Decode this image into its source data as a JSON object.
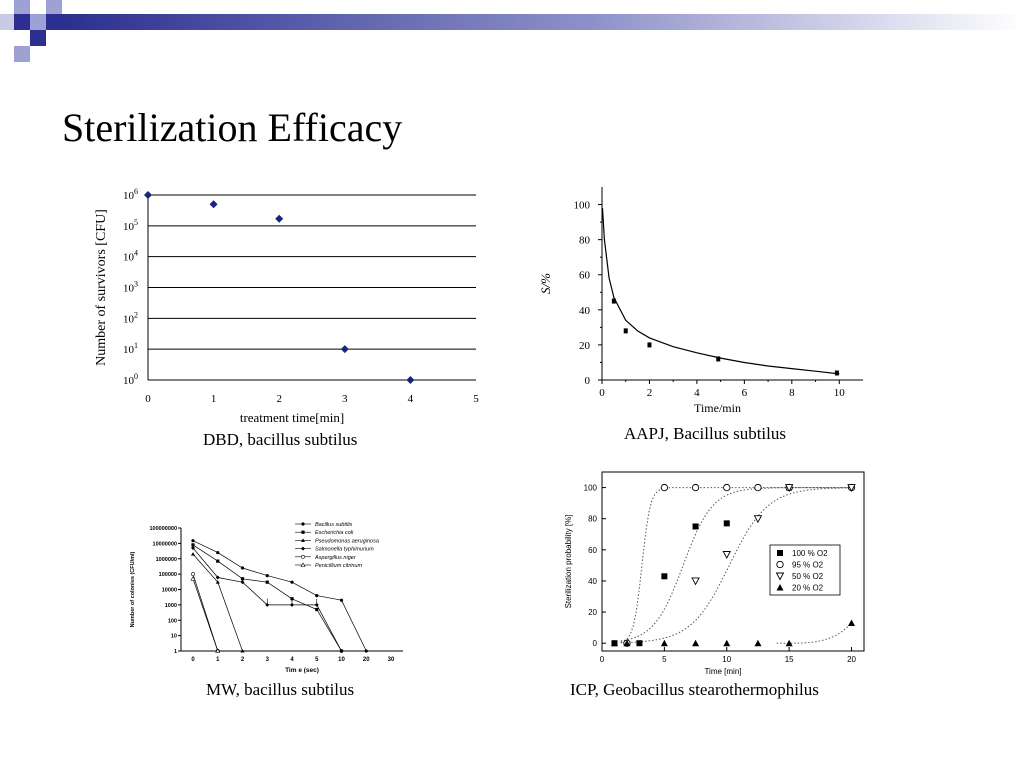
{
  "slide": {
    "title": "Sterilization Efficacy",
    "accent_color": "#2c2f8f",
    "accent_light": "#9da1d3"
  },
  "chart_data": [
    {
      "id": "dbd",
      "type": "scatter",
      "caption": "DBD, bacillus subtilus",
      "xlabel": "treatment time[min]",
      "ylabel": "Number of survivors [CFU]",
      "xlim": [
        0,
        5
      ],
      "xticks": [
        "0",
        "1",
        "2",
        "3",
        "4",
        "5"
      ],
      "yscale": "log",
      "ylim": [
        1,
        1000000
      ],
      "yticks": [
        {
          "value": 1,
          "label": "10",
          "sup": "0"
        },
        {
          "value": 10,
          "label": "10",
          "sup": "1"
        },
        {
          "value": 100,
          "label": "10",
          "sup": "2"
        },
        {
          "value": 1000,
          "label": "10",
          "sup": "3"
        },
        {
          "value": 10000,
          "label": "10",
          "sup": "4"
        },
        {
          "value": 100000,
          "label": "10",
          "sup": "5"
        },
        {
          "value": 1000000,
          "label": "10",
          "sup": "6"
        }
      ],
      "grid": true,
      "marker_color": "#1a237e",
      "series": [
        {
          "points": [
            [
              0,
              1000000
            ],
            [
              1,
              500000
            ],
            [
              2,
              170000
            ],
            [
              3,
              10
            ],
            [
              4,
              1
            ]
          ]
        }
      ]
    },
    {
      "id": "aapj",
      "type": "scatter",
      "caption": "AAPJ, Bacillus subtilus",
      "xlabel": "Time/min",
      "ylabel": "S/%",
      "xlim": [
        0,
        11
      ],
      "xticks": [
        "0",
        "2",
        "4",
        "6",
        "8",
        "10"
      ],
      "ylim": [
        0,
        110
      ],
      "yticks": [
        "0",
        "20",
        "40",
        "60",
        "80",
        "100"
      ],
      "grid": false,
      "series": [
        {
          "points": [
            [
              0.5,
              45
            ],
            [
              1,
              28
            ],
            [
              2,
              20
            ],
            [
              4.9,
              12
            ],
            [
              9.9,
              4
            ]
          ]
        }
      ],
      "fit_curve": [
        [
          0.02,
          98
        ],
        [
          0.1,
          80
        ],
        [
          0.3,
          58
        ],
        [
          0.5,
          47
        ],
        [
          1,
          34
        ],
        [
          1.5,
          28
        ],
        [
          2,
          24
        ],
        [
          3,
          19
        ],
        [
          4,
          15.5
        ],
        [
          5,
          12.5
        ],
        [
          6,
          10
        ],
        [
          7,
          8
        ],
        [
          8,
          6.5
        ],
        [
          9,
          5
        ],
        [
          10,
          3.5
        ]
      ]
    },
    {
      "id": "mw",
      "type": "line",
      "caption": "MW, bacillus subtilus",
      "xlabel": "Tim e (sec)",
      "ylabel": "Number of colonies (CFU/ml)",
      "yscale": "log",
      "ylim": [
        1,
        100000000
      ],
      "yticks": [
        "1",
        "10",
        "100",
        "1000",
        "10000",
        "100000",
        "1000000",
        "10000000",
        "100000000"
      ],
      "categories": [
        "0",
        "1",
        "2",
        "3",
        "4",
        "5",
        "10",
        "20",
        "30"
      ],
      "series": [
        {
          "name": "Bacillus subtilis",
          "marker": "circle",
          "values": [
            15000000,
            2500000,
            250000,
            80000,
            30000,
            4000,
            2000,
            1,
            null
          ]
        },
        {
          "name": "Escherichia coli",
          "marker": "square",
          "values": [
            8000000,
            700000,
            50000,
            30000,
            2500,
            500,
            1,
            null,
            null
          ]
        },
        {
          "name": "Pseudomonas aeruginosa",
          "marker": "triangle",
          "values": [
            2000000,
            30000,
            1,
            null,
            null,
            null,
            null,
            null,
            null
          ]
        },
        {
          "name": "Salmonella typhimurium",
          "marker": "diamond",
          "values": [
            5000000,
            60000,
            30000,
            1000,
            1000,
            1000,
            1,
            null,
            null
          ]
        },
        {
          "name": "Aspergillus niger",
          "marker": "open-circle",
          "values": [
            100000,
            1,
            null,
            null,
            null,
            null,
            null,
            null,
            null
          ]
        },
        {
          "name": "Penicillium citrinum",
          "marker": "open-triangle",
          "values": [
            50000,
            1,
            null,
            null,
            null,
            null,
            null,
            null,
            null
          ]
        }
      ]
    },
    {
      "id": "icp",
      "type": "scatter",
      "caption": "ICP, Geobacillus stearothermophilus",
      "xlabel": "Time [min]",
      "ylabel": "Sterilization probability [%]",
      "xlim": [
        0,
        21
      ],
      "xticks": [
        "0",
        "5",
        "10",
        "15",
        "20"
      ],
      "ylim": [
        -5,
        110
      ],
      "yticks": [
        "0",
        "20",
        "40",
        "60",
        "80",
        "100"
      ],
      "series": [
        {
          "name": "100 % O2",
          "marker": "filled-square",
          "points": [
            [
              1,
              0
            ],
            [
              3,
              0
            ],
            [
              5,
              43
            ],
            [
              7.5,
              75
            ],
            [
              10,
              77
            ],
            [
              15,
              100
            ]
          ]
        },
        {
          "name": "95 % O2",
          "marker": "open-circle",
          "points": [
            [
              2,
              0
            ],
            [
              5,
              100
            ],
            [
              7.5,
              100
            ],
            [
              10,
              100
            ],
            [
              12.5,
              100
            ],
            [
              15,
              100
            ],
            [
              20,
              100
            ]
          ]
        },
        {
          "name": "50 % O2",
          "marker": "open-triangle-down",
          "points": [
            [
              7.5,
              40
            ],
            [
              10,
              57
            ],
            [
              12.5,
              80
            ],
            [
              15,
              100
            ],
            [
              20,
              100
            ]
          ]
        },
        {
          "name": "20 % O2",
          "marker": "filled-triangle",
          "points": [
            [
              1,
              0
            ],
            [
              2,
              0
            ],
            [
              5,
              0
            ],
            [
              7.5,
              0
            ],
            [
              10,
              0
            ],
            [
              12.5,
              0
            ],
            [
              15,
              0
            ],
            [
              20,
              13
            ]
          ]
        }
      ]
    }
  ]
}
